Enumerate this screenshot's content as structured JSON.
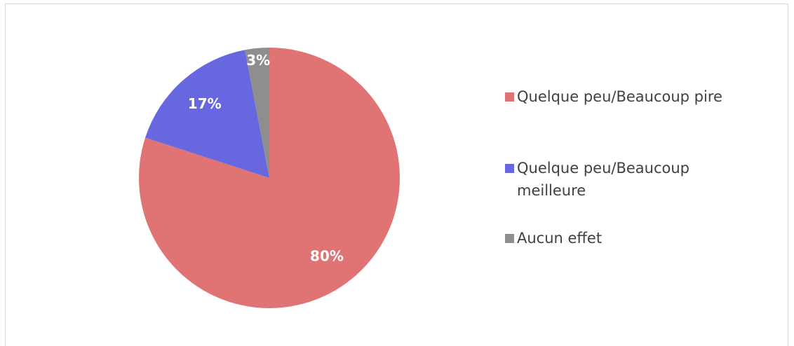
{
  "chart_data": {
    "type": "pie",
    "categories": [
      "Quelque peu/Beaucoup pire",
      "Quelque peu/Beaucoup meilleure",
      "Aucun effet"
    ],
    "values": [
      80,
      17,
      3
    ],
    "value_labels": [
      "80%",
      "17%",
      "3%"
    ],
    "colors": [
      "#e07373",
      "#6767e0",
      "#8e8e8e"
    ],
    "legend": "right"
  }
}
